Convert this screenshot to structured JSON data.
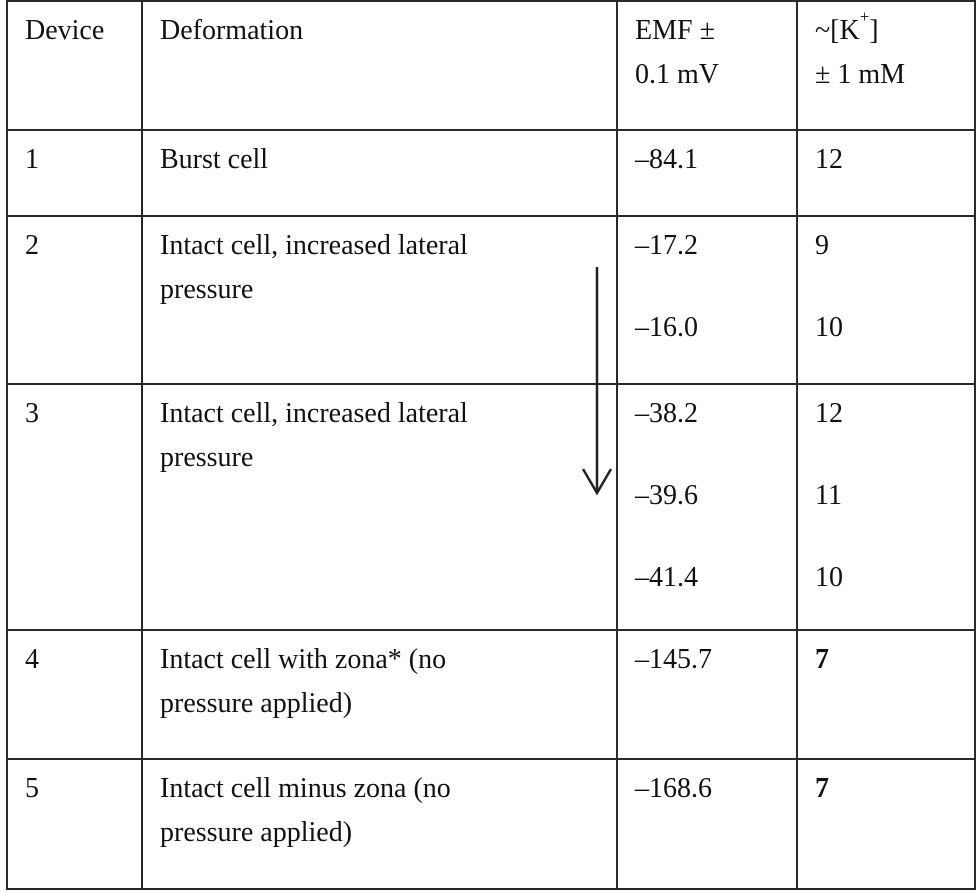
{
  "table": {
    "headers": {
      "device": "Device",
      "deformation": "Deformation",
      "emf_line1": "EMF ±",
      "emf_line2": "0.1 mV",
      "k_prefix": "~[K",
      "k_sup": "+",
      "k_suffix": "]",
      "k_line2": "± 1 mM"
    },
    "rows": [
      {
        "device": "1",
        "deformation": "Burst cell",
        "emf": [
          "–84.1"
        ],
        "k": [
          "12"
        ]
      },
      {
        "device": "2",
        "deformation_line1": "Intact cell, increased lateral",
        "deformation_line2": "pressure",
        "emf": [
          "–17.2",
          "–16.0"
        ],
        "k": [
          "9",
          "10"
        ]
      },
      {
        "device": "3",
        "deformation_line1": "Intact cell, increased lateral",
        "deformation_line2": "pressure",
        "emf": [
          "–38.2",
          "–39.6",
          "–41.4"
        ],
        "k": [
          "12",
          "11",
          "10"
        ]
      },
      {
        "device": "4",
        "deformation_line1": "Intact cell with zona* (no",
        "deformation_line2": "pressure applied)",
        "emf": [
          "–145.7"
        ],
        "k": [
          "7"
        ]
      },
      {
        "device": "5",
        "deformation_line1": "Intact cell minus zona (no",
        "deformation_line2": "pressure applied)",
        "emf": [
          "–168.6"
        ],
        "k": [
          "7"
        ]
      }
    ]
  },
  "arrow": {
    "icon": "down-arrow-icon",
    "color": "#222222"
  },
  "colors": {
    "border": "#2a2a2a",
    "text": "#111111",
    "background": "#ffffff"
  }
}
